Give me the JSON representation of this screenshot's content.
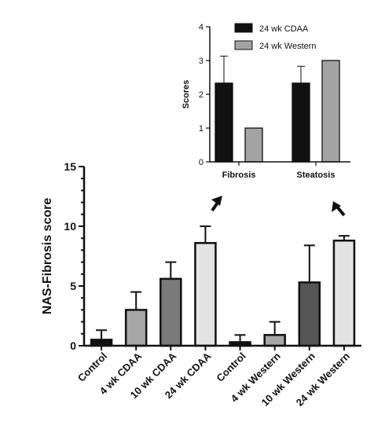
{
  "colors": {
    "axis": "#111111",
    "black_bar": "#111111",
    "dark_gray": "#555555",
    "mid_gray": "#7a7a7a",
    "light_gray": "#a6a6a6",
    "pale_gray": "#e3e3e3",
    "inset_western": "#a3a3a3"
  },
  "chart_data": [
    {
      "type": "bar",
      "title": "",
      "xlabel": "",
      "ylabel": "NAS-Fibrosis score",
      "ylim": [
        0,
        15
      ],
      "yticks": [
        "0",
        "5",
        "10",
        "15"
      ],
      "categories": [
        "Control",
        "4 wk CDAA",
        "10 wk CDAA",
        "24 wk CDAA",
        "Control",
        "4 wk Western",
        "10 wk Western",
        "24 wk Western"
      ],
      "values": [
        0.5,
        3.0,
        5.6,
        8.6,
        0.3,
        0.9,
        5.3,
        8.8
      ],
      "errors": [
        0.8,
        1.5,
        1.4,
        1.4,
        0.6,
        1.1,
        3.1,
        0.4
      ],
      "bar_colors": [
        "#111111",
        "#a6a6a6",
        "#7a7a7a",
        "#e3e3e3",
        "#111111",
        "#a6a6a6",
        "#555555",
        "#e3e3e3"
      ],
      "grid": false,
      "error_bars": "upper"
    },
    {
      "type": "bar",
      "title": "",
      "xlabel": "",
      "ylabel": "Scores",
      "ylim": [
        0,
        4
      ],
      "yticks": [
        "0",
        "1",
        "2",
        "3",
        "4"
      ],
      "categories": [
        "Fibrosis",
        "Steatosis"
      ],
      "series": [
        {
          "name": "24 wk CDAA",
          "values": [
            2.33,
            2.33
          ],
          "errors": [
            0.8,
            0.5
          ],
          "color": "#111111"
        },
        {
          "name": "24 wk Western",
          "values": [
            1.0,
            3.0
          ],
          "errors": [
            0,
            0
          ],
          "color": "#a3a3a3"
        }
      ],
      "legend": "top-left",
      "grid": false,
      "error_bars": "upper"
    }
  ]
}
